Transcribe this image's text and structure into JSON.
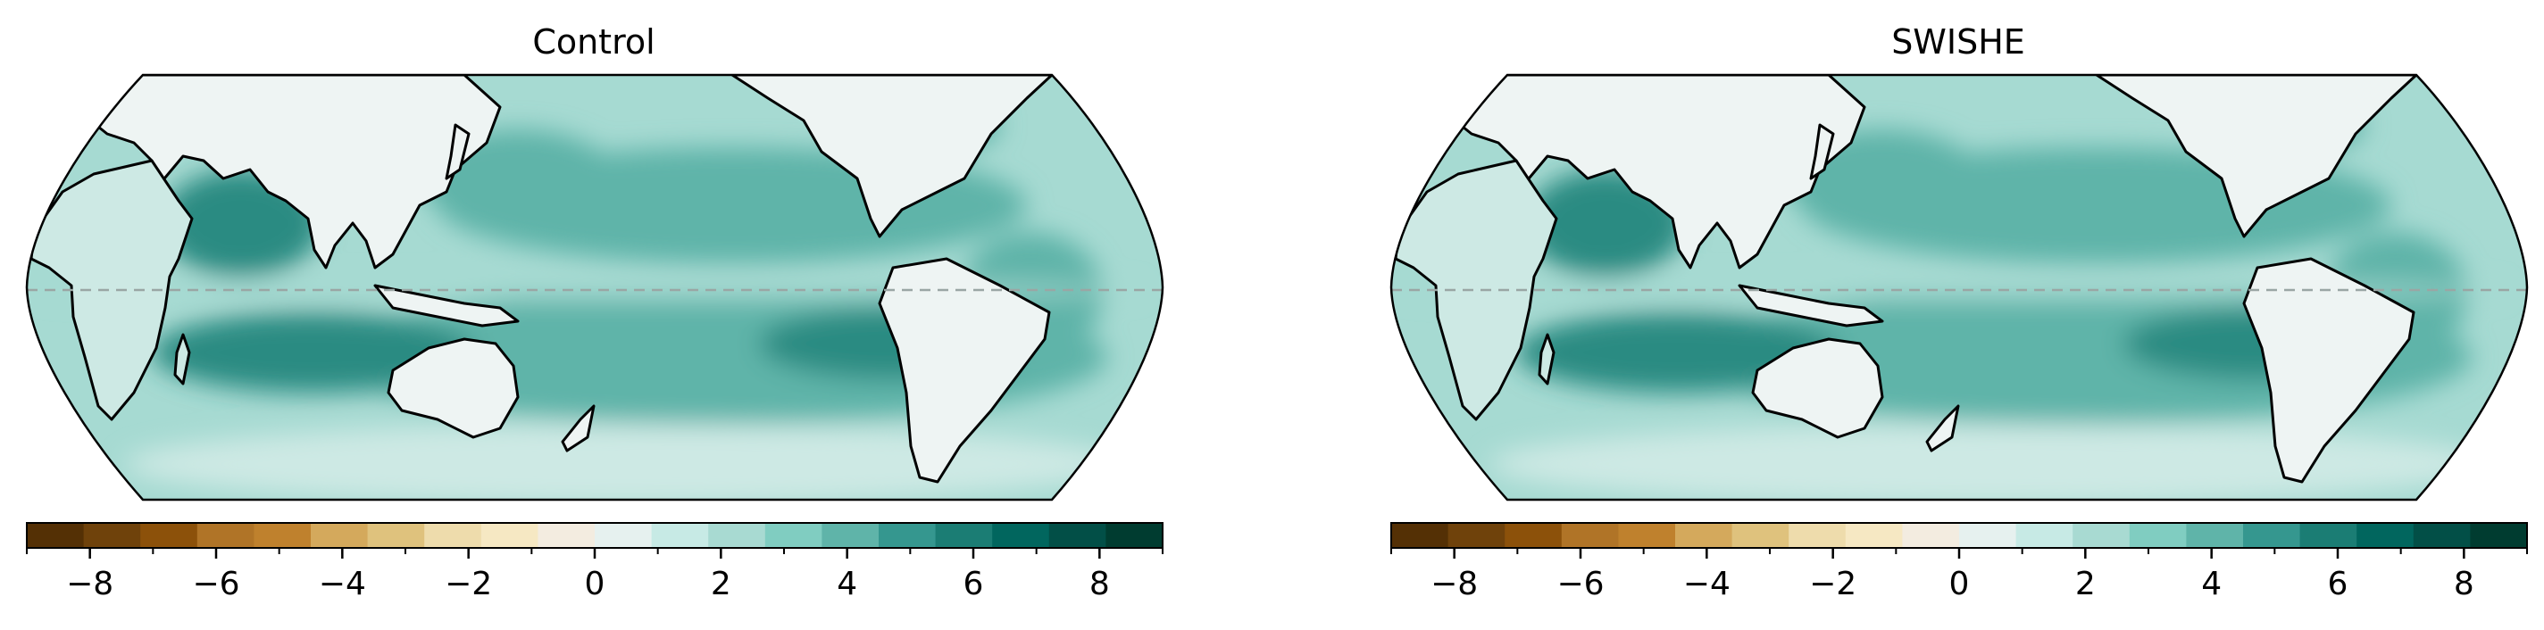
{
  "panels": [
    {
      "title": "Control"
    },
    {
      "title": "SWISHE"
    }
  ],
  "colorbar": {
    "ticks": [
      "−8",
      "−6",
      "−4",
      "−2",
      "0",
      "2",
      "4",
      "6",
      "8"
    ],
    "tick_values": [
      -8,
      -6,
      -4,
      -2,
      0,
      2,
      4,
      6,
      8
    ],
    "range": [
      -9,
      9
    ],
    "step": 1,
    "colors": [
      "#543005",
      "#6f420b",
      "#8c510a",
      "#b07427",
      "#bf812d",
      "#d4a95c",
      "#dfc27d",
      "#eedcac",
      "#f6e8c3",
      "#f3ece0",
      "#e6f1ef",
      "#c7eae5",
      "#a8dad2",
      "#80cdc1",
      "#5fb4a9",
      "#35978f",
      "#1b7d74",
      "#01665e",
      "#024f47",
      "#003c30"
    ]
  },
  "map_colors": {
    "land_light": "#eef4f3",
    "land_mid": "#cde9e4",
    "ocean_light": "#a6dad2",
    "ocean_mid": "#5fb4a9",
    "ocean_dark": "#2c8b82",
    "ocean_darkest": "#156f66",
    "coast": "#000000",
    "equator_line": "#9aa6a4"
  }
}
